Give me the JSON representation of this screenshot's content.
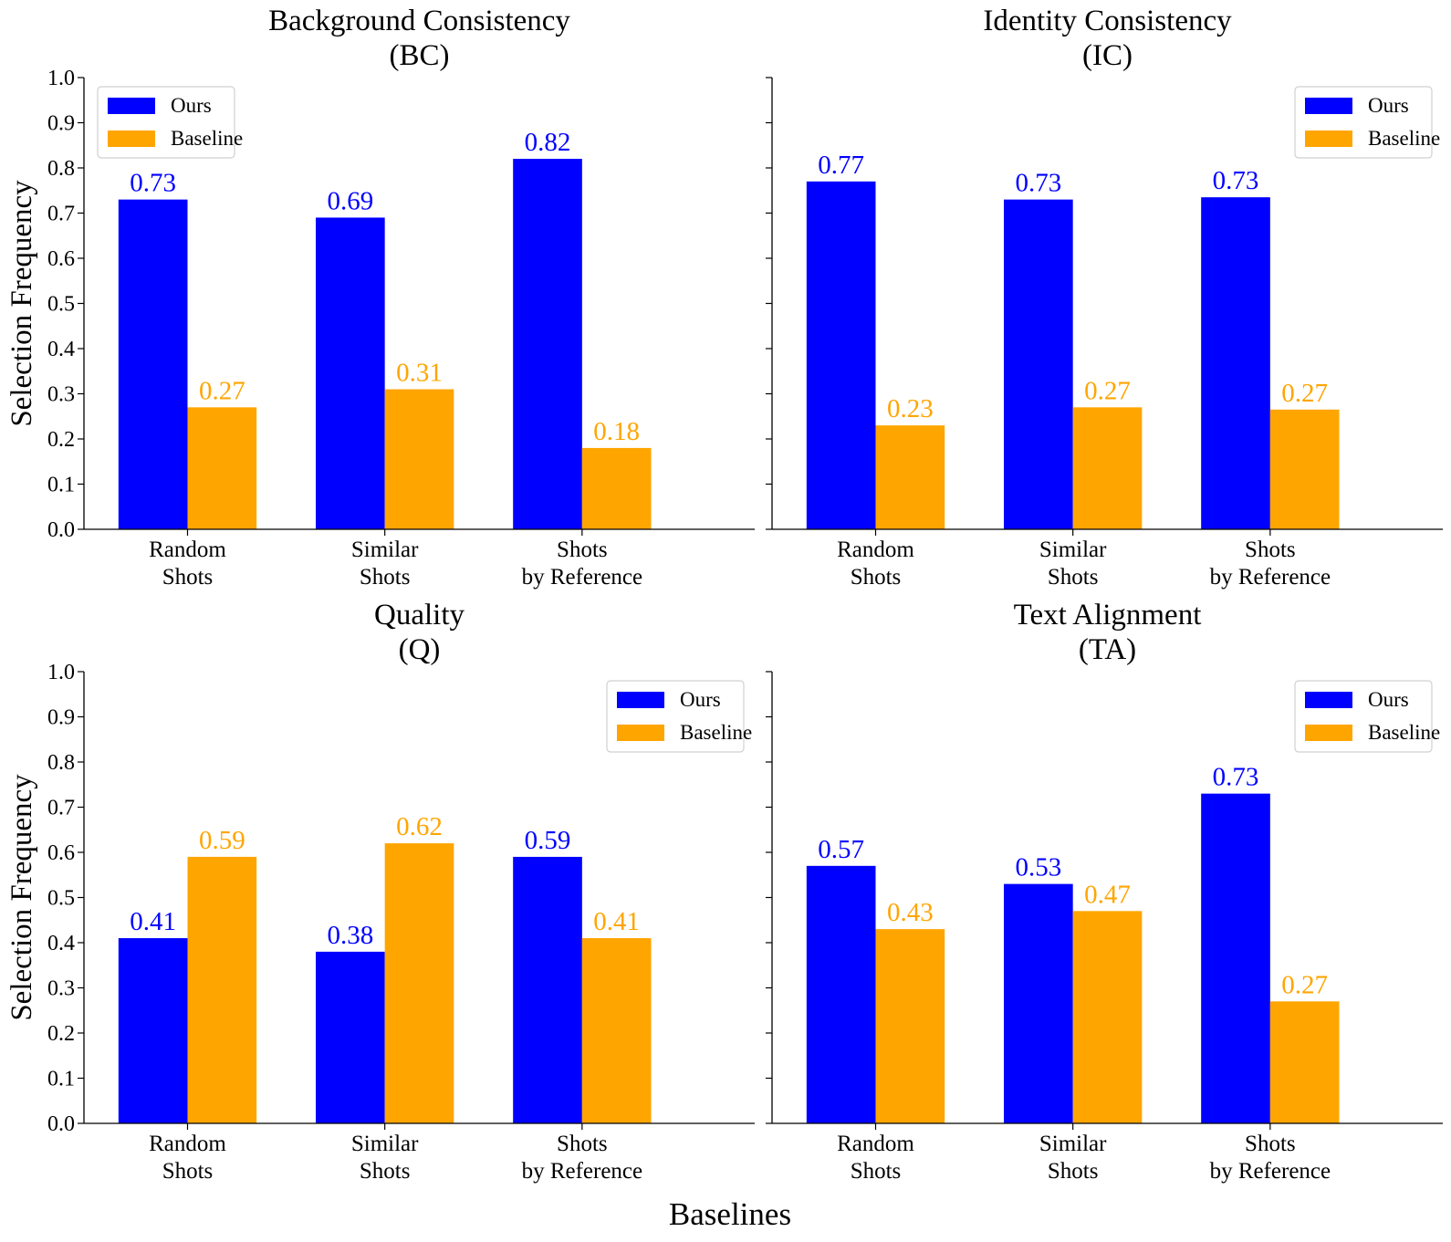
{
  "figure": {
    "xlabel": "Baselines",
    "colors": {
      "ours": "#0000ff",
      "baseline": "#ffa500"
    }
  },
  "chart_data": [
    {
      "type": "bar",
      "title": "Background Consistency\n(BC)",
      "ylabel": "Selection Frequency",
      "categories": [
        "Random\nShots",
        "Similar\nShots",
        "Shots\nby Reference"
      ],
      "series": [
        {
          "name": "Ours",
          "values": [
            0.73,
            0.69,
            0.82
          ],
          "labels": [
            "0.73",
            "0.69",
            "0.82"
          ]
        },
        {
          "name": "Baseline",
          "values": [
            0.27,
            0.31,
            0.18
          ],
          "labels": [
            "0.27",
            "0.31",
            "0.18"
          ]
        }
      ],
      "ylim": [
        0,
        1.0
      ],
      "yticks": [
        "0.0",
        "0.1",
        "0.2",
        "0.3",
        "0.4",
        "0.5",
        "0.6",
        "0.7",
        "0.8",
        "0.9",
        "1.0"
      ],
      "legend": "top-left"
    },
    {
      "type": "bar",
      "title": "Identity Consistency\n(IC)",
      "ylabel": "",
      "categories": [
        "Random\nShots",
        "Similar\nShots",
        "Shots\nby Reference"
      ],
      "series": [
        {
          "name": "Ours",
          "values": [
            0.77,
            0.73,
            0.735
          ],
          "labels": [
            "0.77",
            "0.73",
            "0.73"
          ]
        },
        {
          "name": "Baseline",
          "values": [
            0.23,
            0.27,
            0.265
          ],
          "labels": [
            "0.23",
            "0.27",
            "0.27"
          ]
        }
      ],
      "ylim": [
        0,
        1.0
      ],
      "yticks": [],
      "legend": "top-right"
    },
    {
      "type": "bar",
      "title": "Quality\n(Q)",
      "ylabel": "Selection Frequency",
      "categories": [
        "Random\nShots",
        "Similar\nShots",
        "Shots\nby Reference"
      ],
      "series": [
        {
          "name": "Ours",
          "values": [
            0.41,
            0.38,
            0.59
          ],
          "labels": [
            "0.41",
            "0.38",
            "0.59"
          ]
        },
        {
          "name": "Baseline",
          "values": [
            0.59,
            0.62,
            0.41
          ],
          "labels": [
            "0.59",
            "0.62",
            "0.41"
          ]
        }
      ],
      "ylim": [
        0,
        1.0
      ],
      "yticks": [
        "0.0",
        "0.1",
        "0.2",
        "0.3",
        "0.4",
        "0.5",
        "0.6",
        "0.7",
        "0.8",
        "0.9",
        "1.0"
      ],
      "legend": "top-right"
    },
    {
      "type": "bar",
      "title": "Text Alignment\n(TA)",
      "ylabel": "",
      "categories": [
        "Random\nShots",
        "Similar\nShots",
        "Shots\nby Reference"
      ],
      "series": [
        {
          "name": "Ours",
          "values": [
            0.57,
            0.53,
            0.73
          ],
          "labels": [
            "0.57",
            "0.53",
            "0.73"
          ]
        },
        {
          "name": "Baseline",
          "values": [
            0.43,
            0.47,
            0.27
          ],
          "labels": [
            "0.43",
            "0.47",
            "0.27"
          ]
        }
      ],
      "ylim": [
        0,
        1.0
      ],
      "yticks": [],
      "legend": "top-right"
    }
  ]
}
